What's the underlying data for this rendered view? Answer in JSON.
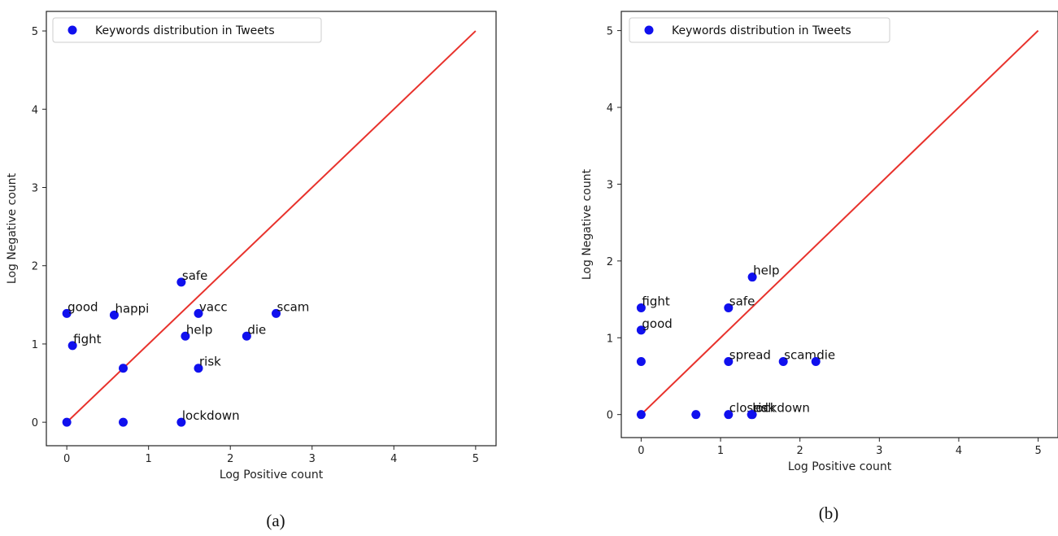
{
  "chart_data": [
    {
      "type": "scatter",
      "caption": "(a)",
      "xlabel": "Log Positive count",
      "ylabel": "Log Negative count",
      "xlim": [
        -0.25,
        5.25
      ],
      "ylim": [
        -0.3,
        5.25
      ],
      "xticks": [
        0,
        1,
        2,
        3,
        4,
        5
      ],
      "yticks": [
        0,
        1,
        2,
        3,
        4,
        5
      ],
      "grid": false,
      "legend": {
        "position": "top-left",
        "entries": [
          "Keywords distribution in Tweets"
        ]
      },
      "reference_line": {
        "x": [
          0,
          5
        ],
        "y": [
          0,
          5
        ],
        "color": "#e8322c"
      },
      "point_color": "#1010ee",
      "series": [
        {
          "name": "Keywords distribution in Tweets",
          "points": [
            {
              "x": 0.0,
              "y": 1.39,
              "label": "good"
            },
            {
              "x": 0.58,
              "y": 1.37,
              "label": "happi"
            },
            {
              "x": 0.07,
              "y": 0.98,
              "label": "fight"
            },
            {
              "x": 1.4,
              "y": 1.79,
              "label": "safe"
            },
            {
              "x": 1.61,
              "y": 1.39,
              "label": "vacc"
            },
            {
              "x": 2.56,
              "y": 1.39,
              "label": "scam"
            },
            {
              "x": 1.45,
              "y": 1.1,
              "label": "help"
            },
            {
              "x": 2.2,
              "y": 1.1,
              "label": "die"
            },
            {
              "x": 1.61,
              "y": 0.69,
              "label": "risk"
            },
            {
              "x": 0.69,
              "y": 0.69,
              "label": ""
            },
            {
              "x": 0.0,
              "y": 0.0,
              "label": ""
            },
            {
              "x": 0.69,
              "y": 0.0,
              "label": ""
            },
            {
              "x": 1.4,
              "y": 0.0,
              "label": "lockdown"
            }
          ]
        }
      ]
    },
    {
      "type": "scatter",
      "caption": "(b)",
      "xlabel": "Log Positive count",
      "ylabel": "Log Negative count",
      "xlim": [
        -0.25,
        5.25
      ],
      "ylim": [
        -0.3,
        5.25
      ],
      "xticks": [
        0,
        1,
        2,
        3,
        4,
        5
      ],
      "yticks": [
        0,
        1,
        2,
        3,
        4,
        5
      ],
      "grid": false,
      "legend": {
        "position": "top-left",
        "entries": [
          "Keywords distribution in Tweets"
        ]
      },
      "reference_line": {
        "x": [
          0,
          5
        ],
        "y": [
          0,
          5
        ],
        "color": "#e8322c"
      },
      "point_color": "#1010ee",
      "series": [
        {
          "name": "Keywords distribution in Tweets",
          "points": [
            {
              "x": 0.0,
              "y": 1.39,
              "label": "fight"
            },
            {
              "x": 0.0,
              "y": 1.1,
              "label": "good"
            },
            {
              "x": 0.0,
              "y": 0.69,
              "label": ""
            },
            {
              "x": 0.0,
              "y": 0.0,
              "label": ""
            },
            {
              "x": 1.4,
              "y": 1.79,
              "label": "help"
            },
            {
              "x": 1.1,
              "y": 1.39,
              "label": "safe"
            },
            {
              "x": 1.1,
              "y": 0.69,
              "label": "spread"
            },
            {
              "x": 1.79,
              "y": 0.69,
              "label": "scam"
            },
            {
              "x": 2.2,
              "y": 0.69,
              "label": "die"
            },
            {
              "x": 0.69,
              "y": 0.0,
              "label": ""
            },
            {
              "x": 1.1,
              "y": 0.0,
              "label": "closed"
            },
            {
              "x": 1.39,
              "y": 0.0,
              "label": "lockdown"
            },
            {
              "x": 1.4,
              "y": 0.0,
              "label": "risk"
            }
          ]
        }
      ]
    }
  ]
}
